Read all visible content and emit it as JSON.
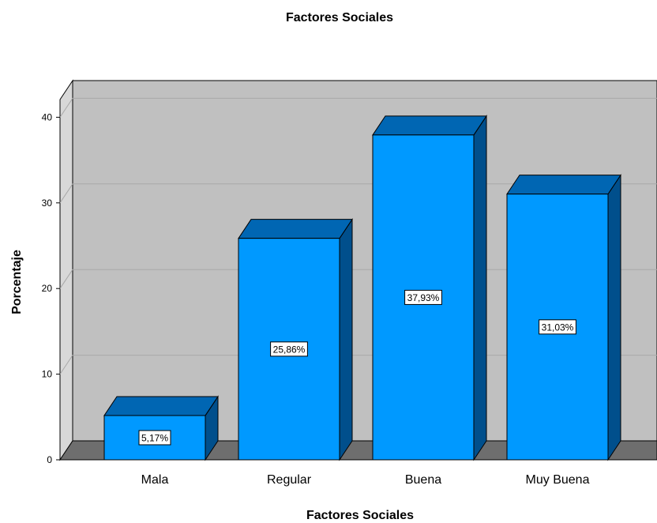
{
  "chart_data": {
    "type": "bar",
    "title": "Factores Sociales",
    "xlabel": "Factores Sociales",
    "ylabel": "Porcentaje",
    "categories": [
      "Mala",
      "Regular",
      "Buena",
      "Muy Buena"
    ],
    "values": [
      5.17,
      25.86,
      37.93,
      31.03
    ],
    "data_labels": [
      "5,17%",
      "25,86%",
      "37,93%",
      "31,03%"
    ],
    "ylim": [
      0,
      40
    ],
    "yticks": [
      "0",
      "10",
      "20",
      "30",
      "40"
    ],
    "grid": true,
    "style": "3d",
    "colors": {
      "bar_front": "#0099ff",
      "bar_top": "#0066b3",
      "bar_side": "#004f8c",
      "plot_back": "#c0c0c0",
      "floor": "#6e6e6e",
      "wall": "#d8d8d8"
    }
  }
}
